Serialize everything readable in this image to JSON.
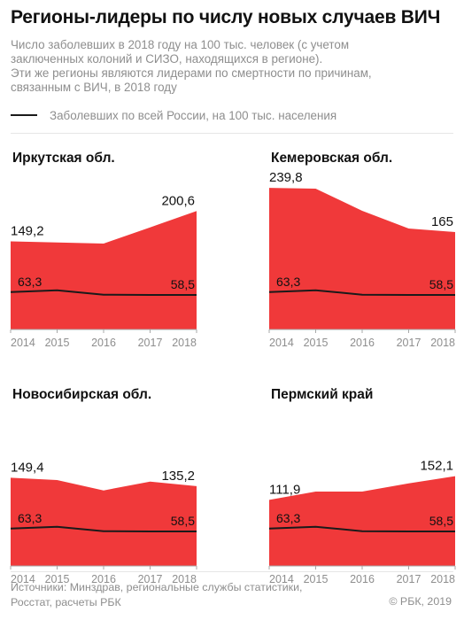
{
  "title": "Регионы-лидеры по числу новых случаев ВИЧ",
  "subtitle_lines": [
    "Число заболевших в 2018 году на 100 тыс. человек (с учетом",
    "заключенных колоний и СИЗО, находящихся в регионе).",
    "Эти же регионы являются лидерами по смертности по причинам,",
    "связанным с ВИЧ, в 2018 году"
  ],
  "legend_label": "Заболевших по всей России, на 100 тыс. населения",
  "colors": {
    "area": "#f0393a",
    "line": "#1a1a1a",
    "axis": "#a8a8a8",
    "tick_text": "#8e8e8e"
  },
  "chart_data": [
    {
      "type": "area",
      "title": "Иркутская обл.",
      "x": [
        "2014",
        "2015",
        "2016",
        "2017",
        "2018"
      ],
      "series": [
        {
          "values": [
            149.2,
            147.5,
            145.5,
            173,
            200.6
          ],
          "labels": [
            "149,2",
            "",
            "",
            "",
            "200,6"
          ]
        },
        {
          "values": [
            63.3,
            66.5,
            59,
            58.5,
            58.5
          ],
          "labels": [
            "63,3",
            "",
            "",
            "",
            "58,5"
          ]
        }
      ],
      "ylim": [
        0,
        240
      ]
    },
    {
      "type": "area",
      "title": "Кемеровская обл.",
      "x": [
        "2014",
        "2015",
        "2016",
        "2017",
        "2018"
      ],
      "series": [
        {
          "values": [
            239.8,
            238.5,
            201,
            171,
            165
          ],
          "labels": [
            "239,8",
            "",
            "",
            "",
            "165"
          ]
        },
        {
          "values": [
            63.3,
            66.5,
            59,
            58.5,
            58.5
          ],
          "labels": [
            "63,3",
            "",
            "",
            "",
            "58,5"
          ]
        }
      ],
      "ylim": [
        0,
        240
      ]
    },
    {
      "type": "area",
      "title": "Новосибирская обл.",
      "x": [
        "2014",
        "2015",
        "2016",
        "2017",
        "2018"
      ],
      "series": [
        {
          "values": [
            149.4,
            145.5,
            128,
            143,
            135.2
          ],
          "labels": [
            "149,4",
            "",
            "",
            "",
            "135,2"
          ]
        },
        {
          "values": [
            63.3,
            66.5,
            59,
            58.5,
            58.5
          ],
          "labels": [
            "63,3",
            "",
            "",
            "",
            "58,5"
          ]
        }
      ],
      "ylim": [
        0,
        240
      ]
    },
    {
      "type": "area",
      "title": "Пермский край",
      "x": [
        "2014",
        "2015",
        "2016",
        "2017",
        "2018"
      ],
      "series": [
        {
          "values": [
            111.9,
            126,
            126,
            140,
            152.1
          ],
          "labels": [
            "111,9",
            "",
            "",
            "",
            "152,1"
          ]
        },
        {
          "values": [
            63.3,
            66.5,
            59,
            58.5,
            58.5
          ],
          "labels": [
            "63,3",
            "",
            "",
            "",
            "58,5"
          ]
        }
      ],
      "ylim": [
        0,
        240
      ]
    }
  ],
  "source_lines": [
    "Источники: Минздрав, региональные службы статистики,",
    "Росстат, расчеты РБК"
  ],
  "copyright": "© РБК, 2019"
}
